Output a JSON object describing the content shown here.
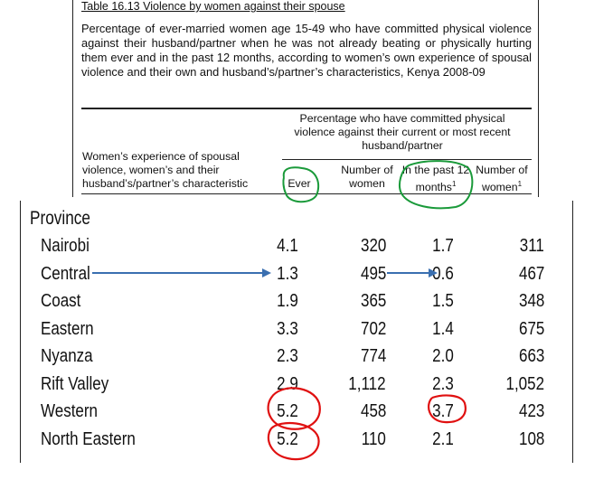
{
  "header": {
    "title": "Table 16.13  Violence by women against their spouse",
    "description": "Percentage of ever-married women age 15-49 who have committed physical violence against their husband/partner when he was not already beating or physically hurting them ever and in the past 12 months, according to women’s own experience of spousal violence and their own and husband’s/partner’s characteristics, Kenya 2008-09",
    "group_header": "Percentage who have committed physical violence against their current or most recent husband/partner",
    "row_header": "Women’s experience of spousal violence, women’s and their husband’s/partner’s characteristic",
    "columns": {
      "ever": "Ever",
      "num_women_1": "Number of women",
      "past12": "In the past 12 months",
      "past12_sup": "1",
      "num_women_2": "Number of women",
      "num_women_2_sup": "1"
    }
  },
  "table": {
    "section_label": "Province",
    "rows": [
      {
        "name": "Nairobi",
        "ever": "4.1",
        "n1": "320",
        "past12": "1.7",
        "n2": "311"
      },
      {
        "name": "Central",
        "ever": "1.3",
        "n1": "495",
        "past12": "0.6",
        "n2": "467"
      },
      {
        "name": "Coast",
        "ever": "1.9",
        "n1": "365",
        "past12": "1.5",
        "n2": "348"
      },
      {
        "name": "Eastern",
        "ever": "3.3",
        "n1": "702",
        "past12": "1.4",
        "n2": "675"
      },
      {
        "name": "Nyanza",
        "ever": "2.3",
        "n1": "774",
        "past12": "2.0",
        "n2": "663"
      },
      {
        "name": "Rift Valley",
        "ever": "2.9",
        "n1": "1,112",
        "past12": "2.3",
        "n2": "1,052"
      },
      {
        "name": "Western",
        "ever": "5.2",
        "n1": "458",
        "past12": "3.7",
        "n2": "423"
      },
      {
        "name": "North Eastern",
        "ever": "5.2",
        "n1": "110",
        "past12": "2.1",
        "n2": "108"
      }
    ]
  },
  "annotation_colors": {
    "green": "#1a9a3a",
    "blue": "#3a6fb0",
    "red": "#e01010"
  }
}
